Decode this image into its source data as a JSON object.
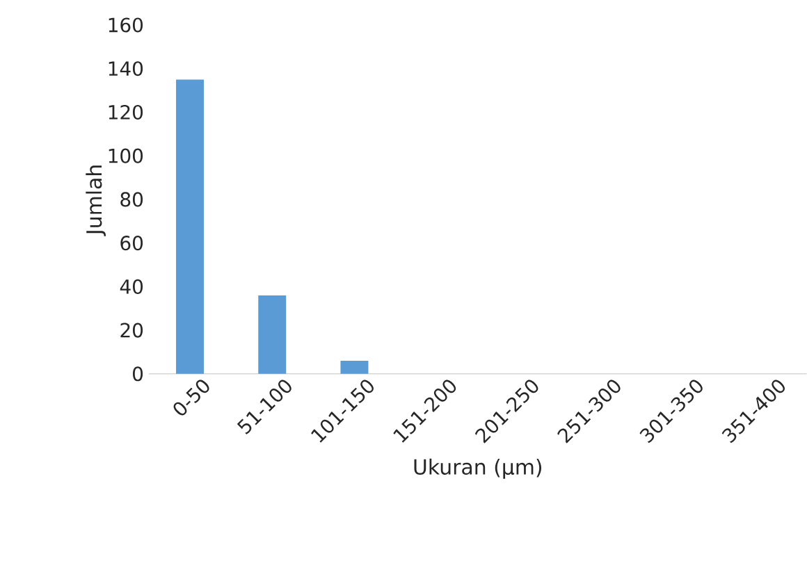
{
  "chart_data": {
    "type": "bar",
    "xlabel": "Ukuran (µm)",
    "ylabel": "Jumlah",
    "categories": [
      "0-50",
      "51-100",
      "101-150",
      "151-200",
      "201-250",
      "251-300",
      "301-350",
      "351-400"
    ],
    "values": [
      135,
      36,
      6,
      0,
      0,
      0,
      0,
      0
    ],
    "color": "#5b9bd5",
    "ylim": [
      0,
      160
    ],
    "yticks": [
      0,
      20,
      40,
      60,
      80,
      100,
      120,
      140,
      160
    ]
  }
}
